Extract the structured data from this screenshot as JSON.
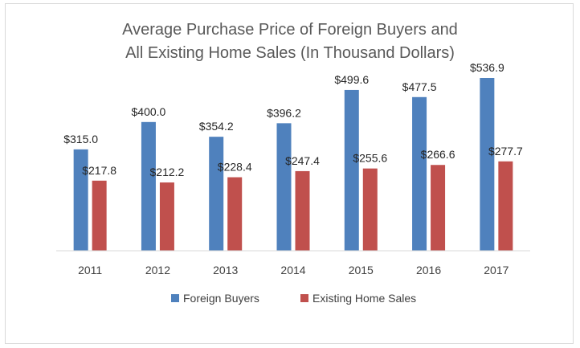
{
  "chart_data": {
    "type": "bar",
    "title_line1": "Average Purchase Price of Foreign Buyers and",
    "title_line2": "All Existing Home Sales (In Thousand Dollars)",
    "categories": [
      "2011",
      "2012",
      "2013",
      "2014",
      "2015",
      "2016",
      "2017"
    ],
    "series": [
      {
        "name": "Foreign Buyers",
        "color": "#4f81bd",
        "values": [
          315.0,
          400.0,
          354.2,
          396.2,
          499.6,
          477.5,
          536.9
        ],
        "labels": [
          "$315.0",
          "$400.0",
          "$354.2",
          "$396.2",
          "$499.6",
          "$477.5",
          "$536.9"
        ]
      },
      {
        "name": "Existing Home Sales",
        "color": "#c0504d",
        "values": [
          217.8,
          212.2,
          228.4,
          247.4,
          255.6,
          266.6,
          277.7
        ],
        "labels": [
          "$217.8",
          "$212.2",
          "$228.4",
          "$247.4",
          "$255.6",
          "$266.6",
          "$277.7"
        ]
      }
    ],
    "ylim": [
      0,
      600
    ],
    "grid": false,
    "legend_position": "bottom"
  }
}
